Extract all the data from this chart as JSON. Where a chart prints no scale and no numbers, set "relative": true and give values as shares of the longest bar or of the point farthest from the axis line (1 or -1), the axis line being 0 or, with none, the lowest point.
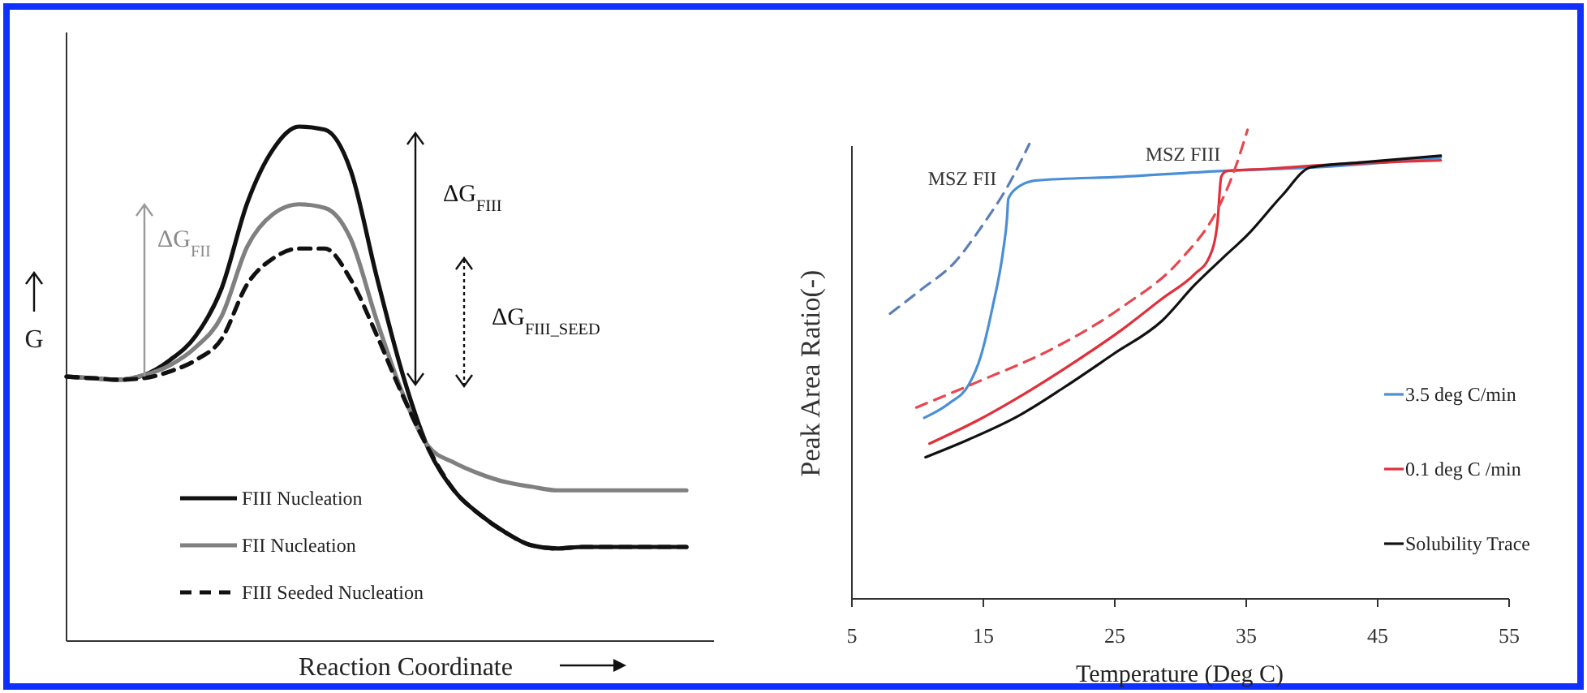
{
  "chart_data": [
    {
      "type": "line",
      "relative": true,
      "xlabel": "Reaction Coordinate",
      "ylabel": "G",
      "legend": "bottom left",
      "categories": [
        null,
        null,
        null,
        null,
        null,
        null,
        null,
        null,
        null,
        null,
        null,
        null,
        null,
        null,
        null,
        null,
        null,
        null,
        null,
        null,
        null,
        null,
        null,
        null,
        null
      ],
      "series": [
        {
          "name": "FIII Nucleation",
          "color": "#111111",
          "values": [
            0.514,
            0.511,
            0.508,
            0.517,
            0.546,
            0.593,
            0.685,
            0.852,
            0.956,
            1.0,
            0.994,
            0.915,
            0.71,
            0.521,
            0.375,
            0.293,
            0.246,
            0.211,
            0.186,
            0.18,
            0.183,
            0.183,
            0.183,
            0.183,
            0.183
          ]
        },
        {
          "name": "FII Nucleation",
          "color": "#808080",
          "values": [
            0.514,
            0.511,
            0.508,
            0.517,
            0.536,
            0.571,
            0.631,
            0.767,
            0.83,
            0.849,
            0.842,
            0.782,
            0.625,
            0.483,
            0.379,
            0.347,
            0.325,
            0.309,
            0.3,
            0.293,
            0.293,
            0.293,
            0.293,
            0.293,
            0.293
          ]
        },
        {
          "name": "FIII Seeded Nucleation",
          "color": "#111111",
          "line_style": "dashed",
          "values": [
            0.514,
            0.511,
            0.508,
            0.511,
            0.524,
            0.546,
            0.587,
            0.694,
            0.744,
            0.763,
            0.763,
            0.703,
            0.596,
            0.479,
            0.375,
            0.293,
            0.246,
            0.211,
            0.186,
            0.18,
            0.183,
            0.183,
            0.183,
            0.183,
            0.183
          ]
        }
      ],
      "annotations": [
        "ΔG$_{FII}$",
        "ΔG$_{FIII}$",
        "ΔG$_{FIII_SEED}$"
      ]
    },
    {
      "type": "line",
      "relative": true,
      "xlabel": "Temperature (Deg C)",
      "ylabel": "Peak Area Ratio(-)",
      "legend": "right",
      "xlim": [
        5,
        55
      ],
      "xticks": [
        5,
        15,
        25,
        35,
        45,
        55
      ],
      "series": [
        {
          "name": "3.5 deg C/min",
          "color": "#4a8fd6",
          "x": [
            10.5,
            12.4,
            13.9,
            14.8,
            15.7,
            16.5,
            16.8,
            16.9,
            17.6,
            19.0,
            25.6,
            32.9,
            40.3,
            49.8
          ],
          "values": [
            0.386,
            0.417,
            0.457,
            0.517,
            0.622,
            0.741,
            0.811,
            0.853,
            0.877,
            0.892,
            0.9,
            0.912,
            0.92,
            0.941
          ]
        },
        {
          "name": "0.1 deg C /min",
          "color": "#e0303a",
          "x": [
            10.9,
            14.6,
            18.3,
            21.9,
            25.6,
            28.6,
            31.1,
            32.2,
            32.8,
            33.1,
            33.5,
            36.6,
            40.3,
            49.8
          ],
          "values": [
            0.331,
            0.381,
            0.44,
            0.504,
            0.575,
            0.64,
            0.693,
            0.729,
            0.799,
            0.9,
            0.912,
            0.917,
            0.924,
            0.935
          ]
        },
        {
          "name": "Solubility Trace",
          "color": "#111111",
          "x": [
            10.6,
            13.9,
            17.6,
            21.2,
            24.9,
            28.6,
            31.1,
            33.3,
            35.1,
            37.7,
            39.9,
            43.9,
            49.8
          ],
          "values": [
            0.302,
            0.34,
            0.389,
            0.452,
            0.522,
            0.593,
            0.67,
            0.729,
            0.776,
            0.859,
            0.92,
            0.931,
            0.945
          ]
        },
        {
          "color": "#5b7fb5",
          "line_style": "dashed",
          "x": [
            7.9,
            10.2,
            12.8,
            15.0,
            16.8,
            18.5
          ],
          "values": [
            0.608,
            0.658,
            0.717,
            0.799,
            0.877,
            0.97
          ]
        },
        {
          "color": "#e8474f",
          "line_style": "dashed",
          "x": [
            9.9,
            14.6,
            20.1,
            25.6,
            30.0,
            32.9,
            34.0,
            35.1
          ],
          "values": [
            0.408,
            0.463,
            0.531,
            0.623,
            0.723,
            0.835,
            0.906,
            1.0
          ]
        }
      ],
      "annotations": [
        "MSZ FII",
        "MSZ FIII"
      ]
    }
  ]
}
